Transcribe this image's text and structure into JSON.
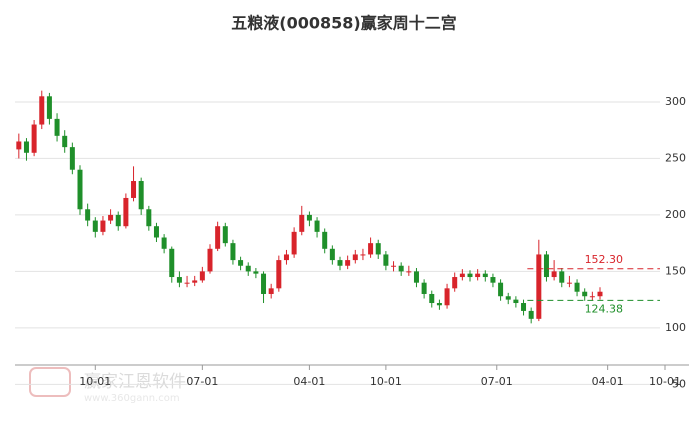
{
  "chart_data": {
    "type": "candlestick",
    "title": "五粮液(000858)赢家周十二宫",
    "up_color": "#d8242b",
    "down_color": "#1f8f2a",
    "grid": true,
    "ylim": [
      45,
      315
    ],
    "yticks": [
      50,
      100,
      150,
      200,
      250,
      300
    ],
    "xlim": [
      0,
      85
    ],
    "xticks": [
      {
        "value": 10.5,
        "label": "10-01"
      },
      {
        "value": 24.5,
        "label": "07-01"
      },
      {
        "value": 38.5,
        "label": "04-01"
      },
      {
        "value": 48.5,
        "label": "10-01"
      },
      {
        "value": 63,
        "label": "07-01"
      },
      {
        "value": 77.5,
        "label": "04-01"
      },
      {
        "value": 85,
        "label": "10-01"
      }
    ],
    "candles": [
      [
        258,
        272,
        250,
        265
      ],
      [
        265,
        268,
        248,
        255
      ],
      [
        255,
        284,
        252,
        280
      ],
      [
        280,
        310,
        276,
        305
      ],
      [
        305,
        308,
        280,
        285
      ],
      [
        285,
        290,
        265,
        270
      ],
      [
        270,
        275,
        255,
        260
      ],
      [
        260,
        264,
        236,
        240
      ],
      [
        240,
        244,
        200,
        205
      ],
      [
        205,
        210,
        190,
        195
      ],
      [
        195,
        198,
        180,
        185
      ],
      [
        185,
        199,
        182,
        195
      ],
      [
        195,
        205,
        192,
        200
      ],
      [
        200,
        203,
        186,
        190
      ],
      [
        190,
        219,
        188,
        215
      ],
      [
        215,
        243,
        212,
        230
      ],
      [
        230,
        233,
        200,
        205
      ],
      [
        205,
        208,
        186,
        190
      ],
      [
        190,
        193,
        176,
        180
      ],
      [
        180,
        183,
        166,
        170
      ],
      [
        170,
        172,
        140,
        145
      ],
      [
        145,
        150,
        136,
        140
      ],
      [
        140,
        146,
        136,
        140
      ],
      [
        140,
        146,
        137,
        142
      ],
      [
        142,
        154,
        140,
        150
      ],
      [
        150,
        174,
        148,
        170
      ],
      [
        170,
        194,
        168,
        190
      ],
      [
        190,
        193,
        172,
        175
      ],
      [
        175,
        178,
        156,
        160
      ],
      [
        160,
        163,
        151,
        155
      ],
      [
        155,
        158,
        146,
        150
      ],
      [
        150,
        153,
        144,
        148
      ],
      [
        148,
        150,
        122,
        130
      ],
      [
        130,
        139,
        126,
        135
      ],
      [
        135,
        164,
        132,
        160
      ],
      [
        160,
        169,
        156,
        165
      ],
      [
        165,
        189,
        162,
        185
      ],
      [
        185,
        208,
        182,
        200
      ],
      [
        200,
        203,
        190,
        195
      ],
      [
        195,
        198,
        180,
        185
      ],
      [
        185,
        188,
        166,
        170
      ],
      [
        170,
        173,
        156,
        160
      ],
      [
        160,
        163,
        151,
        155
      ],
      [
        155,
        164,
        152,
        160
      ],
      [
        160,
        169,
        157,
        165
      ],
      [
        165,
        170,
        160,
        165
      ],
      [
        165,
        180,
        162,
        175
      ],
      [
        175,
        178,
        161,
        165
      ],
      [
        165,
        168,
        151,
        155
      ],
      [
        155,
        159,
        150,
        155
      ],
      [
        155,
        158,
        146,
        150
      ],
      [
        150,
        155,
        146,
        150
      ],
      [
        150,
        153,
        136,
        140
      ],
      [
        140,
        143,
        126,
        130
      ],
      [
        130,
        133,
        118,
        122
      ],
      [
        122,
        125,
        116,
        120
      ],
      [
        120,
        139,
        117,
        135
      ],
      [
        135,
        149,
        132,
        145
      ],
      [
        145,
        152,
        142,
        148
      ],
      [
        148,
        151,
        141,
        145
      ],
      [
        145,
        152,
        142,
        148
      ],
      [
        148,
        151,
        141,
        145
      ],
      [
        145,
        148,
        136,
        140
      ],
      [
        140,
        143,
        124,
        128
      ],
      [
        128,
        131,
        121,
        125
      ],
      [
        125,
        128,
        118,
        122
      ],
      [
        122,
        125,
        111,
        115
      ],
      [
        115,
        118,
        104,
        108
      ],
      [
        108,
        178,
        106,
        165
      ],
      [
        165,
        168,
        141,
        145
      ],
      [
        145,
        160,
        142,
        150
      ],
      [
        150,
        153,
        136,
        140
      ],
      [
        140,
        146,
        136,
        140
      ],
      [
        140,
        143,
        128,
        132
      ],
      [
        132,
        135,
        124,
        128
      ],
      [
        128,
        132,
        124,
        128
      ],
      [
        128,
        136,
        125,
        132
      ]
    ],
    "levels": [
      {
        "value": 152.3,
        "label": "152.30",
        "color": "#d8242b"
      },
      {
        "value": 124.38,
        "label": "124.38",
        "color": "#1f8f2a"
      }
    ],
    "watermark": [
      "赢家江恩软件",
      "www.360gann.com"
    ]
  }
}
